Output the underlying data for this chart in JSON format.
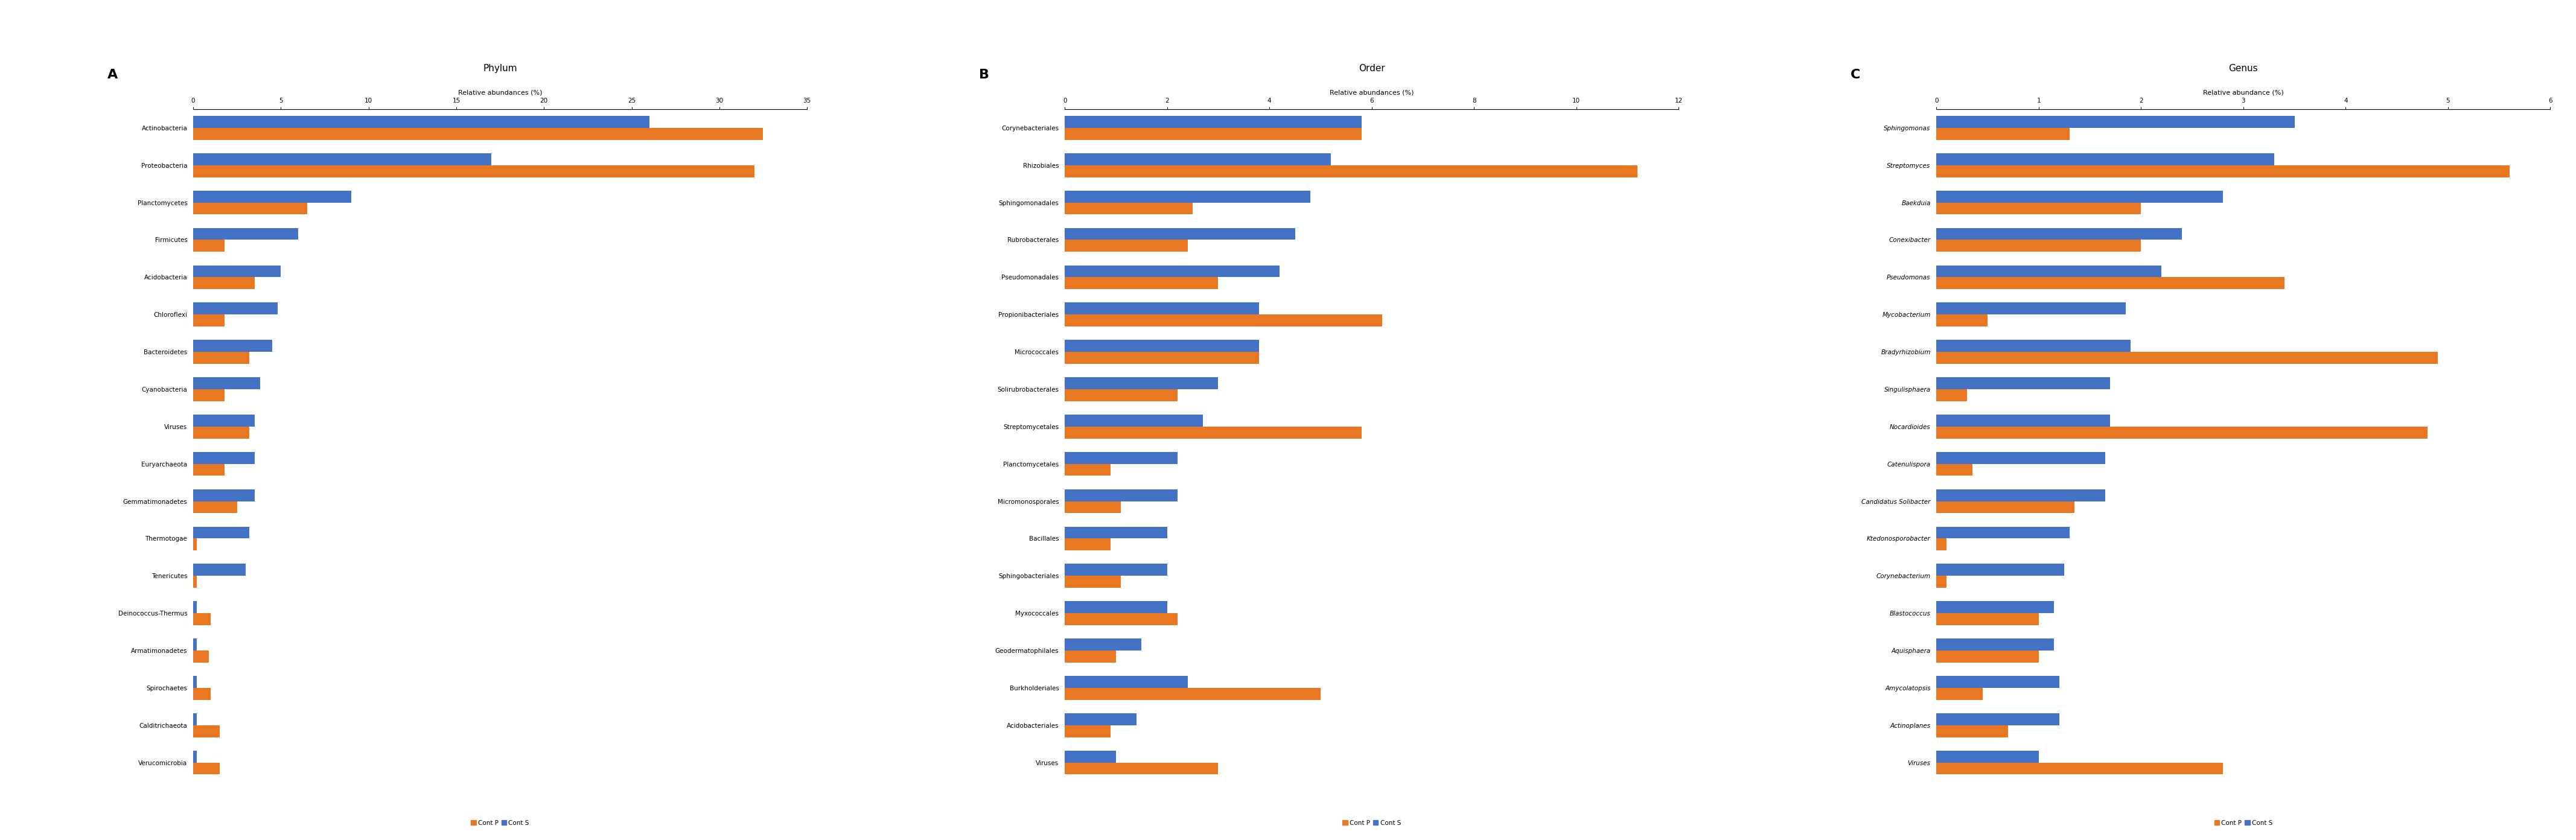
{
  "phylum": {
    "title": "Phylum",
    "panel_label": "A",
    "xlabel": "Relative abundances (%)",
    "xlim": [
      0,
      35
    ],
    "xticks": [
      0,
      5,
      10,
      15,
      20,
      25,
      30,
      35
    ],
    "categories": [
      "Actinobacteria",
      "Proteobacteria",
      "Planctomycetes",
      "Firmicutes",
      "Acidobacteria",
      "Chloroflexi",
      "Bacteroidetes",
      "Cyanobacteria",
      "Viruses",
      "Euryarchaeota",
      "Gemmatimonadetes",
      "Thermotogae",
      "Tenericutes",
      "Deinococcus-Thermus",
      "Armatimonadetes",
      "Spirochaetes",
      "Calditrichaeota",
      "Verucomicrobia"
    ],
    "cont_p": [
      32.5,
      32.0,
      6.5,
      1.8,
      3.5,
      1.8,
      3.2,
      1.8,
      3.2,
      1.8,
      2.5,
      0.2,
      0.2,
      1.0,
      0.9,
      1.0,
      1.5,
      1.5
    ],
    "cont_s": [
      26.0,
      17.0,
      9.0,
      6.0,
      5.0,
      4.8,
      4.5,
      3.8,
      3.5,
      3.5,
      3.5,
      3.2,
      3.0,
      0.2,
      0.2,
      0.2,
      0.2,
      0.2
    ]
  },
  "order": {
    "title": "Order",
    "panel_label": "B",
    "xlabel": "Relative abundances (%)",
    "xlim": [
      0,
      12
    ],
    "xticks": [
      0,
      2,
      4,
      6,
      8,
      10,
      12
    ],
    "categories": [
      "Corynebacteriales",
      "Rhizobiales",
      "Sphingomonadales",
      "Rubrobacterales",
      "Pseudomonadales",
      "Propionibacteriales",
      "Micrococcales",
      "Solirubrobacterales",
      "Streptomycetales",
      "Planctomycetales",
      "Micromonosporales",
      "Bacillales",
      "Sphingobacteriales",
      "Myxococcales",
      "Geodermatophilales",
      "Burkholderiales",
      "Acidobacteriales",
      "Viruses"
    ],
    "cont_p": [
      5.8,
      11.2,
      2.5,
      2.4,
      3.0,
      6.2,
      3.8,
      2.2,
      5.8,
      0.9,
      1.1,
      0.9,
      1.1,
      2.2,
      1.0,
      5.0,
      0.9,
      3.0
    ],
    "cont_s": [
      5.8,
      5.2,
      4.8,
      4.5,
      4.2,
      3.8,
      3.8,
      3.0,
      2.7,
      2.2,
      2.2,
      2.0,
      2.0,
      2.0,
      1.5,
      2.4,
      1.4,
      1.0
    ]
  },
  "genus": {
    "title": "Genus",
    "panel_label": "C",
    "xlabel": "Relative abundance (%)",
    "xlim": [
      0,
      6
    ],
    "xticks": [
      0,
      1,
      2,
      3,
      4,
      5,
      6
    ],
    "categories": [
      "Sphingomonas",
      "Streptomyces",
      "Baekduia",
      "Conexibacter",
      "Pseudomonas",
      "Mycobacterium",
      "Bradyrhizobium",
      "Singulisphaera",
      "Nocardioides",
      "Catenulispora",
      "Candidatus Solibacter",
      "Ktedonosporobacter",
      "Corynebacterium",
      "Blastococcus",
      "Aquisphaera",
      "Amycolatopsis",
      "Actinoplanes",
      "Viruses"
    ],
    "cont_p": [
      1.3,
      5.6,
      2.0,
      2.0,
      3.4,
      0.5,
      4.9,
      0.3,
      4.8,
      0.35,
      1.35,
      0.1,
      0.1,
      1.0,
      1.0,
      0.45,
      0.7,
      2.8
    ],
    "cont_s": [
      3.5,
      3.3,
      2.8,
      2.4,
      2.2,
      1.85,
      1.9,
      1.7,
      1.7,
      1.65,
      1.65,
      1.3,
      1.25,
      1.15,
      1.15,
      1.2,
      1.2,
      1.0
    ]
  },
  "orange_color": "#E87722",
  "blue_color": "#4472C4",
  "bar_height": 0.32,
  "font_size_title": 11,
  "font_size_xlabel": 8,
  "font_size_ytick": 7.5,
  "font_size_xtick": 7.5,
  "font_size_panel": 16,
  "font_size_legend": 7.5
}
